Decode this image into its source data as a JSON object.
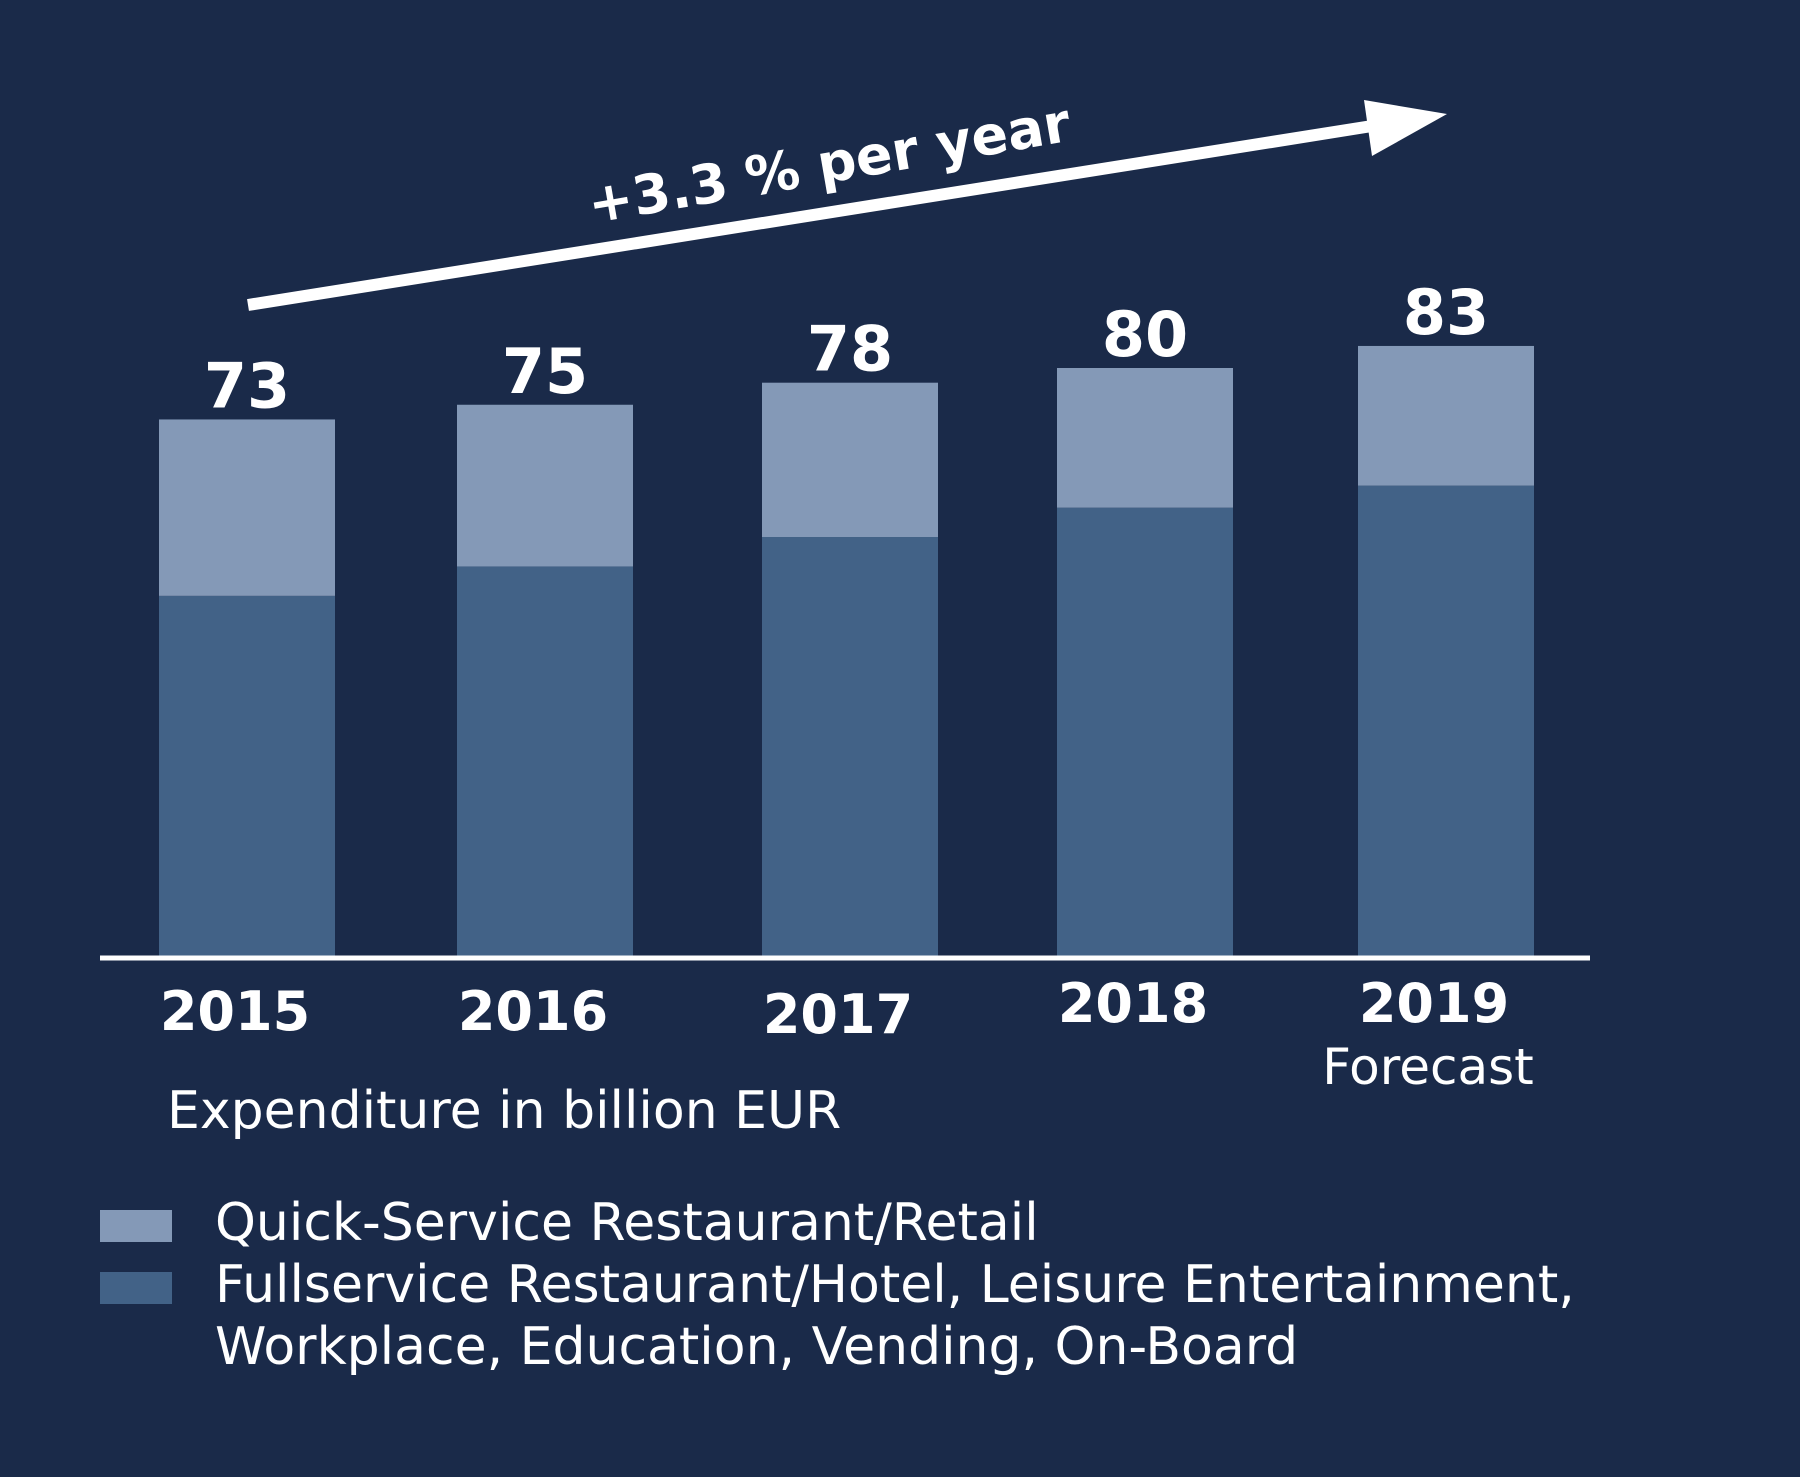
{
  "chart_data": {
    "type": "bar",
    "stacked": true,
    "categories": [
      "2015",
      "2016",
      "2017",
      "2018",
      "2019"
    ],
    "category_sublabels": [
      "",
      "",
      "",
      "",
      "Forecast"
    ],
    "totals": [
      73,
      75,
      78,
      80,
      83
    ],
    "series": [
      {
        "name": "Fullservice Restaurant/Hotel, Leisure Entertainment, Workplace, Education, Vending, On-Board",
        "values": [
          49,
          53,
          57,
          61,
          64
        ],
        "color": "#426287"
      },
      {
        "name": "Quick-Service Restaurant/Retail",
        "values": [
          24,
          22,
          21,
          19,
          19
        ],
        "color": "#8499b7"
      }
    ],
    "ylim": [
      0,
      83
    ],
    "ylabel": "",
    "xlabel": "",
    "unit_label": "Expenditure in billion EUR",
    "annotation": "+3.3 % per year",
    "legend": [
      {
        "lines": [
          "Quick-Service Restaurant/Retail"
        ],
        "color": "#8499b7"
      },
      {
        "lines": [
          "Fullservice Restaurant/Hotel, Leisure Entertainment,",
          "Workplace, Education, Vending, On-Board"
        ],
        "color": "#426287"
      }
    ],
    "grid": false,
    "legend_position": "bottom-left"
  },
  "colors": {
    "background": "#1a2a49",
    "text": "#ffffff",
    "baseline": "#ffffff"
  }
}
